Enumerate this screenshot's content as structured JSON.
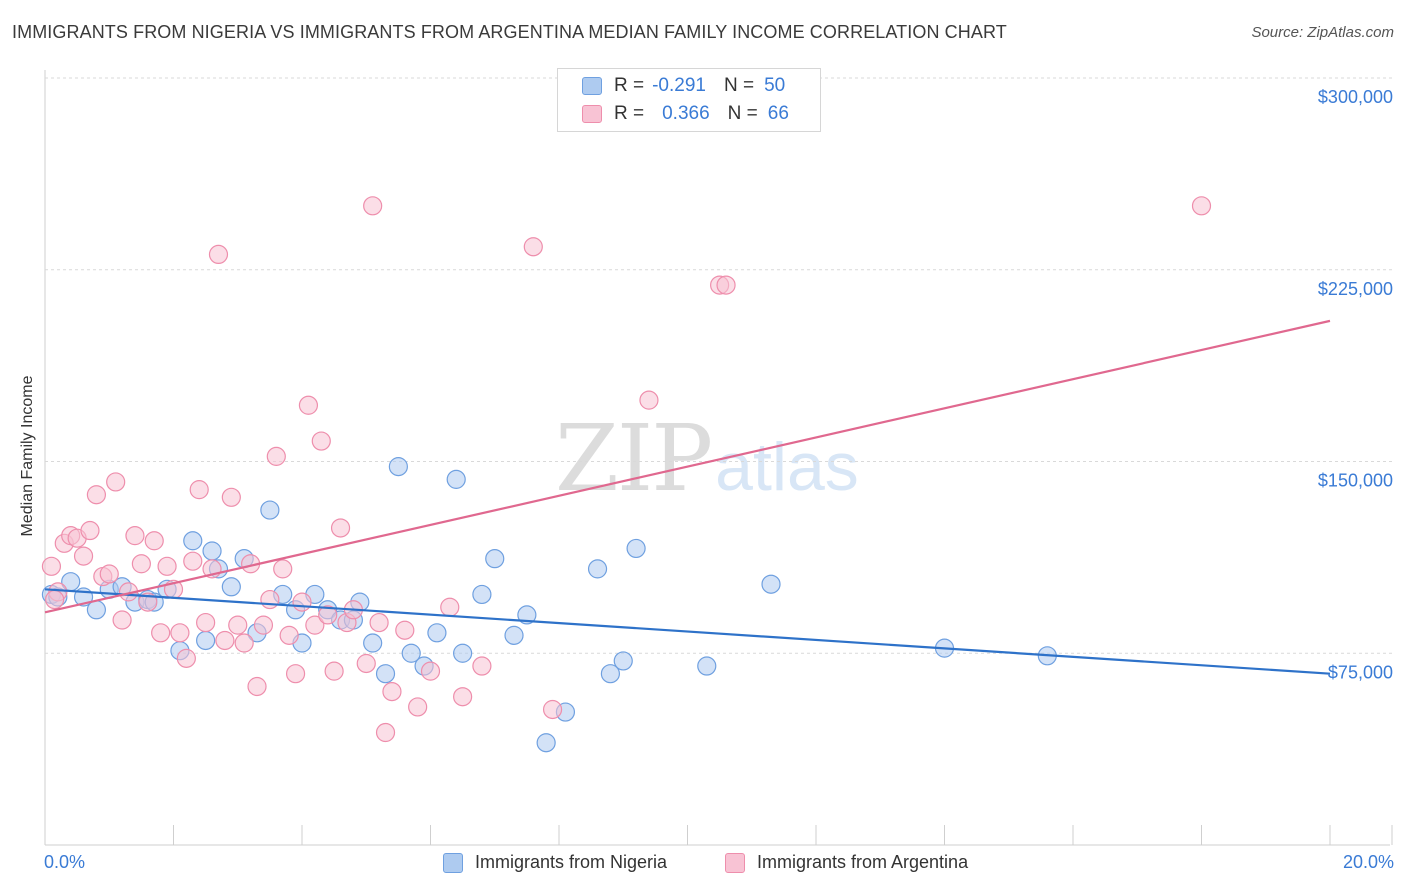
{
  "title": "IMMIGRANTS FROM NIGERIA VS IMMIGRANTS FROM ARGENTINA MEDIAN FAMILY INCOME CORRELATION CHART",
  "source": "Source: ZipAtlas.com",
  "watermark": {
    "zip": "ZIP",
    "atlas": "atlas"
  },
  "legend_top": {
    "rows": [
      {
        "r_label": "R =",
        "r_value": "-0.291",
        "n_label": "N =",
        "n_value": "50"
      },
      {
        "r_label": "R =",
        "r_value": "0.366",
        "n_label": "N =",
        "n_value": "66"
      }
    ]
  },
  "legend_bottom": {
    "items": [
      {
        "label": "Immigrants from Nigeria"
      },
      {
        "label": "Immigrants from Argentina"
      }
    ]
  },
  "colors": {
    "nigeria_fill": "#aecbf0",
    "nigeria_stroke": "#6fa0e0",
    "nigeria_line": "#2e72c9",
    "argentina_fill": "#f8c3d4",
    "argentina_stroke": "#ee8eac",
    "argentina_line": "#e0688f",
    "tick_text": "#3a7bd5",
    "grid": "#d9d9d9"
  },
  "chart_data": {
    "type": "scatter",
    "title": "IMMIGRANTS FROM NIGERIA VS IMMIGRANTS FROM ARGENTINA MEDIAN FAMILY INCOME CORRELATION CHART",
    "xlabel": "",
    "ylabel": "Median Family Income",
    "xlim": [
      0,
      20
    ],
    "ylim": [
      0,
      310000
    ],
    "x_tick_labels": {
      "left": "0.0%",
      "right": "20.0%"
    },
    "y_ticks": [
      {
        "value": 75000,
        "label": "$75,000"
      },
      {
        "value": 150000,
        "label": "$150,000"
      },
      {
        "value": 225000,
        "label": "$225,000"
      },
      {
        "value": 300000,
        "label": "$300,000"
      }
    ],
    "grid": true,
    "legend_position": "top-center",
    "series": [
      {
        "name": "Immigrants from Nigeria",
        "color": "#6fa0e0",
        "trend": {
          "x": [
            0,
            20
          ],
          "y": [
            100000,
            67000
          ]
        },
        "points": [
          [
            0.1,
            98000
          ],
          [
            0.2,
            97000
          ],
          [
            0.4,
            103000
          ],
          [
            0.6,
            97000
          ],
          [
            0.8,
            92000
          ],
          [
            1.0,
            100000
          ],
          [
            1.2,
            101000
          ],
          [
            1.4,
            95000
          ],
          [
            1.6,
            96000
          ],
          [
            1.7,
            95000
          ],
          [
            1.9,
            100000
          ],
          [
            2.1,
            76000
          ],
          [
            2.3,
            119000
          ],
          [
            2.5,
            80000
          ],
          [
            2.6,
            115000
          ],
          [
            2.7,
            108000
          ],
          [
            2.9,
            101000
          ],
          [
            3.1,
            112000
          ],
          [
            3.3,
            83000
          ],
          [
            3.5,
            131000
          ],
          [
            3.7,
            98000
          ],
          [
            3.9,
            92000
          ],
          [
            4.0,
            79000
          ],
          [
            4.2,
            98000
          ],
          [
            4.4,
            92000
          ],
          [
            4.6,
            88000
          ],
          [
            4.8,
            88000
          ],
          [
            4.9,
            95000
          ],
          [
            5.1,
            79000
          ],
          [
            5.3,
            67000
          ],
          [
            5.5,
            148000
          ],
          [
            5.7,
            75000
          ],
          [
            5.9,
            70000
          ],
          [
            6.1,
            83000
          ],
          [
            6.4,
            143000
          ],
          [
            6.5,
            75000
          ],
          [
            6.8,
            98000
          ],
          [
            7.0,
            112000
          ],
          [
            7.3,
            82000
          ],
          [
            7.5,
            90000
          ],
          [
            7.8,
            40000
          ],
          [
            8.1,
            52000
          ],
          [
            8.6,
            108000
          ],
          [
            8.8,
            67000
          ],
          [
            9.0,
            72000
          ],
          [
            9.2,
            116000
          ],
          [
            10.3,
            70000
          ],
          [
            11.3,
            102000
          ],
          [
            14.0,
            77000
          ],
          [
            15.6,
            74000
          ]
        ]
      },
      {
        "name": "Immigrants from Argentina",
        "color": "#ee8eac",
        "trend": {
          "x": [
            0,
            20
          ],
          "y": [
            91000,
            205000
          ]
        },
        "points": [
          [
            0.1,
            109000
          ],
          [
            0.2,
            99000
          ],
          [
            0.3,
            118000
          ],
          [
            0.4,
            121000
          ],
          [
            0.5,
            120000
          ],
          [
            0.6,
            113000
          ],
          [
            0.7,
            123000
          ],
          [
            0.8,
            137000
          ],
          [
            0.9,
            105000
          ],
          [
            1.0,
            106000
          ],
          [
            1.1,
            142000
          ],
          [
            1.2,
            88000
          ],
          [
            1.3,
            99000
          ],
          [
            1.4,
            121000
          ],
          [
            1.5,
            110000
          ],
          [
            1.6,
            95000
          ],
          [
            1.7,
            119000
          ],
          [
            1.8,
            83000
          ],
          [
            1.9,
            109000
          ],
          [
            2.0,
            100000
          ],
          [
            2.1,
            83000
          ],
          [
            2.2,
            73000
          ],
          [
            2.3,
            111000
          ],
          [
            2.4,
            139000
          ],
          [
            2.5,
            87000
          ],
          [
            2.6,
            108000
          ],
          [
            2.7,
            231000
          ],
          [
            2.8,
            80000
          ],
          [
            2.9,
            136000
          ],
          [
            3.0,
            86000
          ],
          [
            3.1,
            79000
          ],
          [
            3.2,
            110000
          ],
          [
            3.3,
            62000
          ],
          [
            3.4,
            86000
          ],
          [
            3.5,
            96000
          ],
          [
            3.6,
            152000
          ],
          [
            3.7,
            108000
          ],
          [
            3.8,
            82000
          ],
          [
            3.9,
            67000
          ],
          [
            4.0,
            95000
          ],
          [
            4.1,
            172000
          ],
          [
            4.2,
            86000
          ],
          [
            4.3,
            158000
          ],
          [
            4.4,
            90000
          ],
          [
            4.5,
            68000
          ],
          [
            4.6,
            124000
          ],
          [
            4.7,
            87000
          ],
          [
            4.8,
            92000
          ],
          [
            5.0,
            71000
          ],
          [
            5.1,
            250000
          ],
          [
            5.2,
            87000
          ],
          [
            5.3,
            44000
          ],
          [
            5.4,
            60000
          ],
          [
            5.6,
            84000
          ],
          [
            5.8,
            54000
          ],
          [
            6.0,
            68000
          ],
          [
            6.3,
            93000
          ],
          [
            6.5,
            58000
          ],
          [
            6.8,
            70000
          ],
          [
            7.6,
            234000
          ],
          [
            7.9,
            53000
          ],
          [
            9.4,
            174000
          ],
          [
            10.5,
            219000
          ],
          [
            10.6,
            219000
          ],
          [
            18.0,
            250000
          ],
          [
            0.15,
            96000
          ]
        ]
      }
    ]
  }
}
